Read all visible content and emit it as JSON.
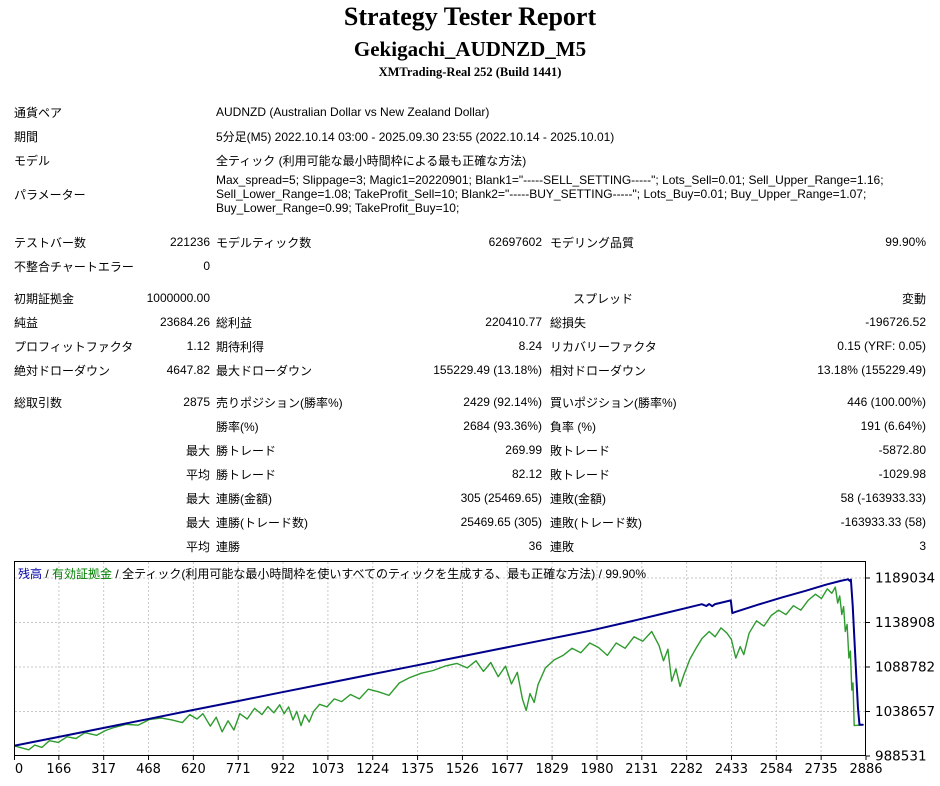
{
  "header": {
    "title": "Strategy Tester Report",
    "subtitle": "Gekigachi_AUDNZD_M5",
    "server": "XMTrading-Real 252 (Build 1441)"
  },
  "table": {
    "rows": [
      {
        "type": "wide",
        "label": "通貨ペア",
        "value": "AUDNZD (Australian Dollar vs New Zealand Dollar)"
      },
      {
        "type": "wide",
        "label": "期間",
        "value": "5分足(M5) 2022.10.14 03:00 - 2025.09.30 23:55 (2022.10.14 - 2025.10.01)"
      },
      {
        "type": "wide",
        "label": "モデル",
        "value": "全ティック (利用可能な最小時間枠による最も正確な方法)"
      },
      {
        "type": "params",
        "label": "パラメーター",
        "value": "Max_spread=5; Slippage=3; Magic1=20220901; Blank1=\"-----SELL_SETTING-----\"; Lots_Sell=0.01; Sell_Upper_Range=1.16; Sell_Lower_Range=1.08; TakeProfit_Sell=10; Blank2=\"-----BUY_SETTING-----\"; Lots_Buy=0.01; Buy_Upper_Range=1.07; Buy_Lower_Range=0.99; TakeProfit_Buy=10;"
      },
      {
        "type": "spacer",
        "h": 14
      },
      {
        "type": "cells",
        "cells": [
          "テストバー数",
          "221236",
          "モデルティック数",
          "62697602",
          "モデリング品質",
          "99.90%"
        ]
      },
      {
        "type": "cells",
        "cells": [
          "不整合チャートエラー",
          "0",
          "",
          "",
          "",
          ""
        ]
      },
      {
        "type": "spacer",
        "h": 8
      },
      {
        "type": "spread",
        "cells": [
          "初期証拠金",
          "1000000.00",
          "",
          "",
          "スプレッド",
          "変動"
        ]
      },
      {
        "type": "cells",
        "cells": [
          "純益",
          "23684.26",
          "総利益",
          "220410.77",
          "総損失",
          "-196726.52"
        ]
      },
      {
        "type": "cells",
        "cells": [
          "プロフィットファクタ",
          "1.12",
          "期待利得",
          "8.24",
          "リカバリーファクタ",
          "0.15 (YRF: 0.05)"
        ]
      },
      {
        "type": "cells",
        "cells": [
          "絶対ドローダウン",
          "4647.82",
          "最大ドローダウン",
          "155229.49 (13.18%)",
          "相対ドローダウン",
          "13.18% (155229.49)"
        ]
      },
      {
        "type": "spacer",
        "h": 8
      },
      {
        "type": "cells",
        "cells": [
          "総取引数",
          "2875",
          "売りポジション(勝率%)",
          "2429 (92.14%)",
          "買いポジション(勝率%)",
          "446 (100.00%)"
        ]
      },
      {
        "type": "cells",
        "cells": [
          "",
          "",
          "勝率(%)",
          "2684 (93.36%)",
          "負率 (%)",
          "191 (6.64%)"
        ]
      },
      {
        "type": "cells",
        "cells": [
          "",
          "最大",
          "勝トレード",
          "269.99",
          "敗トレード",
          "-5872.80"
        ]
      },
      {
        "type": "cells",
        "cells": [
          "",
          "平均",
          "勝トレード",
          "82.12",
          "敗トレード",
          "-1029.98"
        ]
      },
      {
        "type": "cells",
        "cells": [
          "",
          "最大",
          "連勝(金額)",
          "305 (25469.65)",
          "連敗(金額)",
          "58 (-163933.33)"
        ]
      },
      {
        "type": "cells",
        "cells": [
          "",
          "最大",
          "連勝(トレード数)",
          "25469.65 (305)",
          "連敗(トレード数)",
          "-163933.33 (58)"
        ]
      },
      {
        "type": "cells",
        "cells": [
          "",
          "平均",
          "連勝",
          "36",
          "連敗",
          "3"
        ]
      }
    ]
  },
  "chart": {
    "legend": {
      "balance": "残高",
      "equity": "有効証拠金",
      "sep": " / ",
      "model": "全ティック(利用可能な最小時間枠を使いすべてのティックを生成する、最も正確な方法)",
      "quality": "99.90%",
      "balance_color": "#0000a8",
      "equity_color": "#008000"
    }
  },
  "chart_data": {
    "type": "line",
    "x_ticks": [
      0,
      166,
      317,
      468,
      620,
      771,
      922,
      1073,
      1224,
      1375,
      1526,
      1677,
      1829,
      1980,
      2131,
      2282,
      2433,
      2584,
      2735,
      2886
    ],
    "y_ticks": [
      1189034,
      1138908,
      1088782,
      1038657,
      988531
    ],
    "xmax": 2886,
    "ymin": 988531,
    "ymax": 1189034,
    "grid": true,
    "grid_color": "#c9c9c9",
    "legend_position": "top-left",
    "series": [
      {
        "name": "残高",
        "id": "balance-line",
        "color": "#00008b",
        "points": [
          [
            0,
            1000000
          ],
          [
            150,
            1009960
          ],
          [
            300,
            1019930
          ],
          [
            450,
            1029890
          ],
          [
            600,
            1039860
          ],
          [
            750,
            1049820
          ],
          [
            900,
            1059790
          ],
          [
            1050,
            1069750
          ],
          [
            1200,
            1079720
          ],
          [
            1350,
            1089680
          ],
          [
            1500,
            1099650
          ],
          [
            1650,
            1109610
          ],
          [
            1800,
            1119580
          ],
          [
            1950,
            1129540
          ],
          [
            2100,
            1141000
          ],
          [
            2200,
            1149000
          ],
          [
            2280,
            1155500
          ],
          [
            2330,
            1159500
          ],
          [
            2345,
            1157500
          ],
          [
            2355,
            1159800
          ],
          [
            2365,
            1157300
          ],
          [
            2375,
            1159600
          ],
          [
            2400,
            1161500
          ],
          [
            2428,
            1163800
          ],
          [
            2433,
            1149500
          ],
          [
            2445,
            1151000
          ],
          [
            2520,
            1159000
          ],
          [
            2600,
            1167000
          ],
          [
            2680,
            1174500
          ],
          [
            2750,
            1181500
          ],
          [
            2800,
            1185800
          ],
          [
            2825,
            1187617
          ],
          [
            2831,
            1185900
          ],
          [
            2835,
            1187200
          ],
          [
            2841,
            1158000
          ],
          [
            2847,
            1118000
          ],
          [
            2853,
            1078000
          ],
          [
            2859,
            1042000
          ],
          [
            2864,
            1023684
          ],
          [
            2875,
            1023684
          ]
        ]
      },
      {
        "name": "有効証拠金",
        "id": "equity-line",
        "color": "#2e9b2e",
        "points": [
          [
            0,
            1000000
          ],
          [
            25,
            997800
          ],
          [
            50,
            995500
          ],
          [
            70,
            1000800
          ],
          [
            95,
            998200
          ],
          [
            120,
            1005800
          ],
          [
            150,
            1003800
          ],
          [
            180,
            1010200
          ],
          [
            210,
            1008200
          ],
          [
            240,
            1014800
          ],
          [
            280,
            1011800
          ],
          [
            310,
            1017200
          ],
          [
            340,
            1020800
          ],
          [
            380,
            1024200
          ],
          [
            420,
            1023200
          ],
          [
            460,
            1029800
          ],
          [
            500,
            1031200
          ],
          [
            535,
            1029200
          ],
          [
            570,
            1026200
          ],
          [
            595,
            1035200
          ],
          [
            620,
            1030200
          ],
          [
            640,
            1036200
          ],
          [
            665,
            1022200
          ],
          [
            685,
            1032200
          ],
          [
            705,
            1015800
          ],
          [
            725,
            1028200
          ],
          [
            745,
            1017800
          ],
          [
            765,
            1036200
          ],
          [
            790,
            1030200
          ],
          [
            815,
            1042200
          ],
          [
            840,
            1035200
          ],
          [
            860,
            1044200
          ],
          [
            880,
            1037200
          ],
          [
            900,
            1046200
          ],
          [
            915,
            1036200
          ],
          [
            930,
            1043800
          ],
          [
            945,
            1029200
          ],
          [
            958,
            1038800
          ],
          [
            972,
            1022800
          ],
          [
            985,
            1034800
          ],
          [
            1000,
            1026800
          ],
          [
            1015,
            1038800
          ],
          [
            1035,
            1046800
          ],
          [
            1060,
            1043800
          ],
          [
            1085,
            1052800
          ],
          [
            1110,
            1049800
          ],
          [
            1140,
            1057800
          ],
          [
            1170,
            1052800
          ],
          [
            1200,
            1063800
          ],
          [
            1235,
            1060800
          ],
          [
            1270,
            1056800
          ],
          [
            1305,
            1070800
          ],
          [
            1340,
            1076800
          ],
          [
            1380,
            1081800
          ],
          [
            1420,
            1084800
          ],
          [
            1460,
            1089800
          ],
          [
            1500,
            1092800
          ],
          [
            1535,
            1087800
          ],
          [
            1565,
            1095800
          ],
          [
            1590,
            1083800
          ],
          [
            1615,
            1093800
          ],
          [
            1640,
            1077800
          ],
          [
            1665,
            1089800
          ],
          [
            1685,
            1069800
          ],
          [
            1705,
            1082800
          ],
          [
            1722,
            1052800
          ],
          [
            1735,
            1039800
          ],
          [
            1748,
            1058800
          ],
          [
            1762,
            1048800
          ],
          [
            1775,
            1068800
          ],
          [
            1800,
            1087800
          ],
          [
            1830,
            1096800
          ],
          [
            1860,
            1101800
          ],
          [
            1890,
            1109800
          ],
          [
            1920,
            1104800
          ],
          [
            1950,
            1115800
          ],
          [
            1980,
            1110800
          ],
          [
            2010,
            1101800
          ],
          [
            2040,
            1115800
          ],
          [
            2070,
            1109800
          ],
          [
            2100,
            1122800
          ],
          [
            2130,
            1117800
          ],
          [
            2160,
            1128800
          ],
          [
            2185,
            1112800
          ],
          [
            2200,
            1095800
          ],
          [
            2215,
            1108800
          ],
          [
            2228,
            1072800
          ],
          [
            2242,
            1086800
          ],
          [
            2256,
            1066800
          ],
          [
            2270,
            1080800
          ],
          [
            2290,
            1097800
          ],
          [
            2310,
            1109800
          ],
          [
            2330,
            1120800
          ],
          [
            2355,
            1128800
          ],
          [
            2375,
            1122800
          ],
          [
            2395,
            1132800
          ],
          [
            2415,
            1126800
          ],
          [
            2430,
            1119800
          ],
          [
            2445,
            1098800
          ],
          [
            2460,
            1111800
          ],
          [
            2472,
            1102800
          ],
          [
            2490,
            1126800
          ],
          [
            2515,
            1140800
          ],
          [
            2540,
            1134800
          ],
          [
            2565,
            1146800
          ],
          [
            2590,
            1152800
          ],
          [
            2615,
            1147800
          ],
          [
            2640,
            1157800
          ],
          [
            2665,
            1152800
          ],
          [
            2690,
            1163800
          ],
          [
            2715,
            1170800
          ],
          [
            2735,
            1165800
          ],
          [
            2755,
            1176800
          ],
          [
            2770,
            1171800
          ],
          [
            2782,
            1178800
          ],
          [
            2790,
            1160800
          ],
          [
            2797,
            1168800
          ],
          [
            2804,
            1147800
          ],
          [
            2810,
            1156800
          ],
          [
            2816,
            1128800
          ],
          [
            2822,
            1136800
          ],
          [
            2828,
            1098800
          ],
          [
            2833,
            1106800
          ],
          [
            2838,
            1062800
          ],
          [
            2842,
            1070800
          ],
          [
            2846,
            1022800
          ],
          [
            2875,
            1023684
          ]
        ]
      }
    ]
  }
}
